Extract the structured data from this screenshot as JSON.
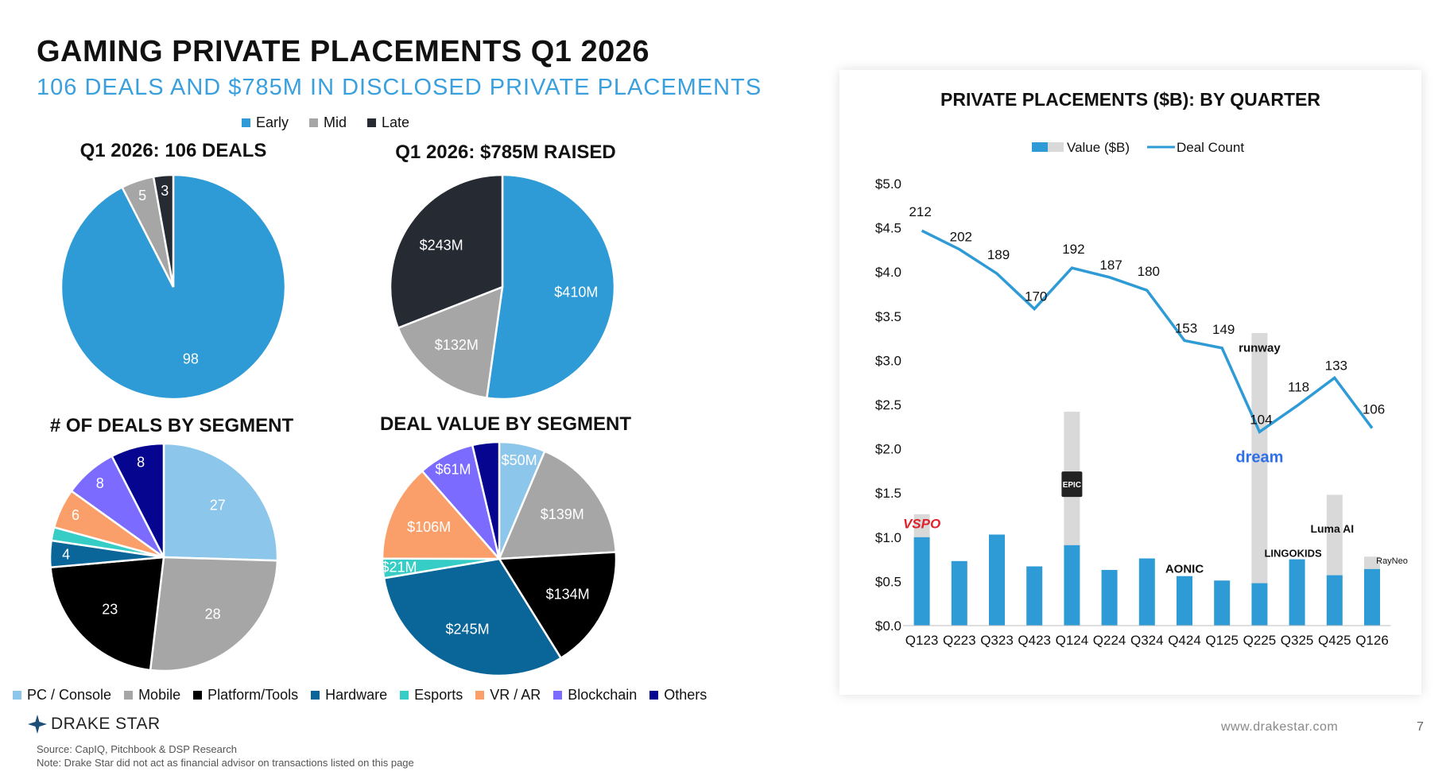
{
  "header": {
    "title": "GAMING PRIVATE PLACEMENTS Q1 2026",
    "subtitle": "106 DEALS AND $785M IN DISCLOSED PRIVATE PLACEMENTS"
  },
  "stage_legend": [
    {
      "label": "Early",
      "color": "#2e9bd6"
    },
    {
      "label": "Mid",
      "color": "#a6a6a6"
    },
    {
      "label": "Late",
      "color": "#262b33"
    }
  ],
  "segment_legend": [
    {
      "label": "PC / Console",
      "color": "#8cc6ea"
    },
    {
      "label": "Mobile",
      "color": "#a6a6a6"
    },
    {
      "label": "Platform/Tools",
      "color": "#000000"
    },
    {
      "label": "Hardware",
      "color": "#0a6699"
    },
    {
      "label": "Esports",
      "color": "#36cdc7"
    },
    {
      "label": "VR / AR",
      "color": "#fb9f6a"
    },
    {
      "label": "Blockchain",
      "color": "#7b6cff"
    },
    {
      "label": "Others",
      "color": "#05058f"
    }
  ],
  "chart_data": [
    {
      "id": "deals_stage",
      "type": "pie",
      "title": "Q1 2026: 106 DEALS",
      "labels": [
        "Early",
        "Mid",
        "Late"
      ],
      "values": [
        98,
        5,
        3
      ],
      "data_labels": [
        "98",
        "5",
        "3"
      ]
    },
    {
      "id": "value_stage",
      "type": "pie",
      "title": "Q1 2026: $785M RAISED",
      "labels": [
        "Early",
        "Mid",
        "Late"
      ],
      "values": [
        410,
        132,
        243
      ],
      "data_labels": [
        "$410M",
        "$132M",
        "$243M"
      ]
    },
    {
      "id": "deals_segment",
      "type": "pie",
      "title": "# OF DEALS BY SEGMENT",
      "labels": [
        "PC / Console",
        "Mobile",
        "Platform/Tools",
        "Hardware",
        "Esports",
        "VR / AR",
        "Blockchain",
        "Others"
      ],
      "values": [
        27,
        28,
        23,
        4,
        2,
        6,
        8,
        8
      ],
      "data_labels": [
        "27",
        "28",
        "23",
        "4",
        "",
        "6",
        "8",
        "8"
      ]
    },
    {
      "id": "value_segment",
      "type": "pie",
      "title": "DEAL VALUE BY SEGMENT",
      "labels": [
        "PC / Console",
        "Mobile",
        "Platform/Tools",
        "Hardware",
        "Esports",
        "VR / AR",
        "Blockchain",
        "Others"
      ],
      "values": [
        50,
        139,
        134,
        245,
        21,
        106,
        61,
        29
      ],
      "data_labels": [
        "$50M",
        "$139M",
        "$134M",
        "$245M",
        "$21M",
        "$106M",
        "$61M",
        ""
      ]
    },
    {
      "id": "quarterly",
      "type": "bar",
      "title": "PRIVATE PLACEMENTS ($B): BY QUARTER",
      "categories": [
        "Q123",
        "Q223",
        "Q323",
        "Q423",
        "Q124",
        "Q224",
        "Q324",
        "Q424",
        "Q125",
        "Q225",
        "Q325",
        "Q425",
        "Q126"
      ],
      "series": [
        {
          "name": "Value ($B)",
          "values": [
            1.0,
            0.73,
            1.03,
            0.67,
            0.91,
            0.63,
            0.76,
            0.56,
            0.51,
            0.48,
            0.75,
            0.57,
            0.64
          ]
        },
        {
          "name": "Value ($B) – highlighted deal",
          "values": [
            0.26,
            0,
            0,
            0,
            1.51,
            0,
            0,
            0,
            0,
            2.83,
            0,
            0.91,
            0.14
          ]
        },
        {
          "name": "Deal Count",
          "type": "line",
          "values": [
            212,
            202,
            189,
            170,
            192,
            187,
            180,
            153,
            149,
            104,
            118,
            133,
            106
          ]
        }
      ],
      "legend": [
        "Value ($B)",
        "Deal Count"
      ],
      "yticks": [
        "$0.0",
        "$0.5",
        "$1.0",
        "$1.5",
        "$2.0",
        "$2.5",
        "$3.0",
        "$3.5",
        "$4.0",
        "$4.5",
        "$5.0"
      ],
      "ylim": [
        0,
        5
      ],
      "deal_count_range": [
        0,
        230
      ],
      "annotations": [
        {
          "quarter": "Q123",
          "label": "VSPO"
        },
        {
          "quarter": "Q124",
          "label": "EPIC GAMES"
        },
        {
          "quarter": "Q424",
          "label": "AONIC"
        },
        {
          "quarter": "Q225",
          "label": "runway"
        },
        {
          "quarter": "Q225",
          "label": "dream"
        },
        {
          "quarter": "Q325",
          "label": "LINGOKIDS"
        },
        {
          "quarter": "Q425",
          "label": "Luma AI"
        },
        {
          "quarter": "Q126",
          "label": "RayNeo"
        }
      ]
    }
  ],
  "footer": {
    "brand": "DRAKE STAR",
    "source": "Source: CapIQ, Pitchbook & DSP Research",
    "note": "Note: Drake Star did not act as financial advisor on transactions listed on this page",
    "website": "www.drakestar.com",
    "page": "7"
  }
}
